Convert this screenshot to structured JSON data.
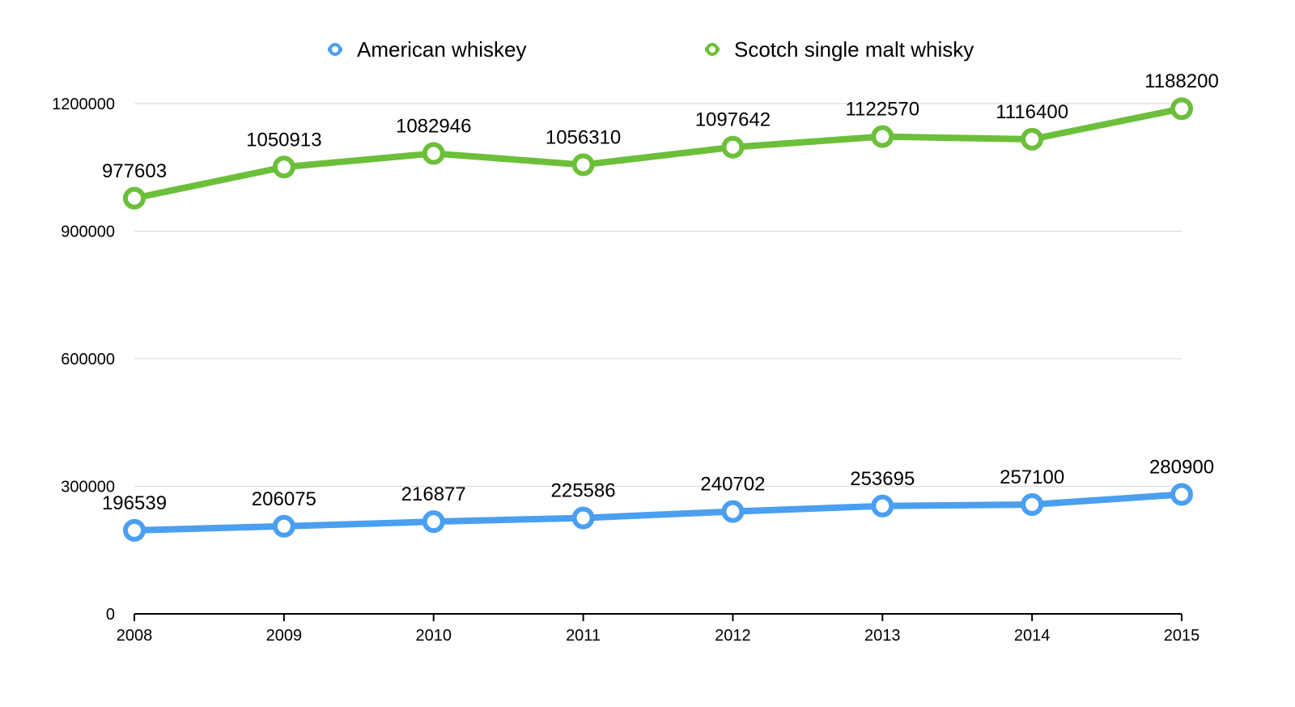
{
  "chart_data": {
    "type": "line",
    "title": "",
    "xlabel": "",
    "ylabel": "",
    "categories": [
      "2008",
      "2009",
      "2010",
      "2011",
      "2012",
      "2013",
      "2014",
      "2015"
    ],
    "ylim": [
      0,
      1200000
    ],
    "yticks": [
      "0",
      "300000",
      "600000",
      "900000",
      "1200000"
    ],
    "grid": true,
    "legend_position": "top-center",
    "series": [
      {
        "name": "American whiskey",
        "color": "#4a9ff0",
        "values": [
          196539,
          206075,
          216877,
          225586,
          240702,
          253695,
          257100,
          280900
        ],
        "labels": [
          "196539",
          "206075",
          "216877",
          "225586",
          "240702",
          "253695",
          "257100",
          "280900"
        ]
      },
      {
        "name": "Scotch single malt whisky",
        "color": "#6cbf3a",
        "values": [
          977603,
          1050913,
          1082946,
          1056310,
          1097642,
          1122570,
          1116400,
          1188200
        ],
        "labels": [
          "977603",
          "1050913",
          "1082946",
          "1056310",
          "1097642",
          "1122570",
          "1116400",
          "1188200"
        ]
      }
    ]
  }
}
